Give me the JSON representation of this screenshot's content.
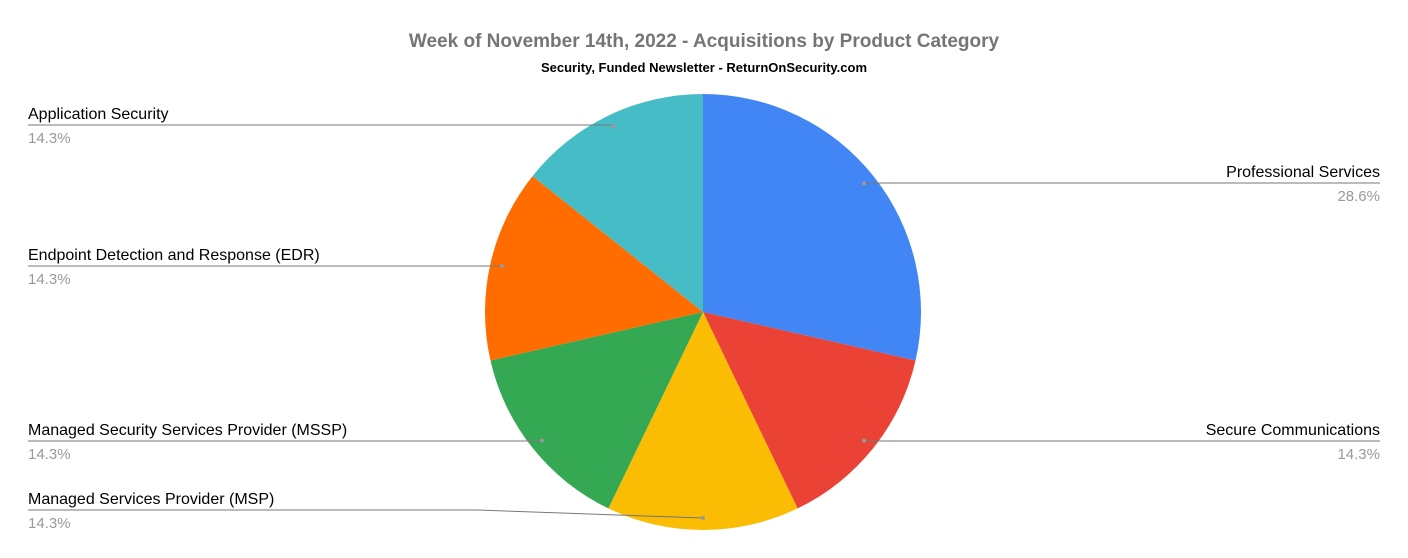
{
  "chart_data": {
    "type": "pie",
    "title": "Week of November 14th, 2022 - Acquisitions by Product Category",
    "subtitle": "Security, Funded Newsletter - ReturnOnSecurity.com",
    "categories": [
      "Professional Services",
      "Secure Communications",
      "Managed Services Provider (MSP)",
      "Managed Security Services Provider (MSSP)",
      "Endpoint Detection and Response (EDR)",
      "Application Security"
    ],
    "values": [
      28.6,
      14.3,
      14.3,
      14.3,
      14.3,
      14.3
    ],
    "value_labels": [
      "28.6%",
      "14.3%",
      "14.3%",
      "14.3%",
      "14.3%",
      "14.3%"
    ],
    "colors": [
      "#4285f4",
      "#ea4335",
      "#fbbc04",
      "#34a853",
      "#ff6d01",
      "#46bdc6"
    ]
  }
}
